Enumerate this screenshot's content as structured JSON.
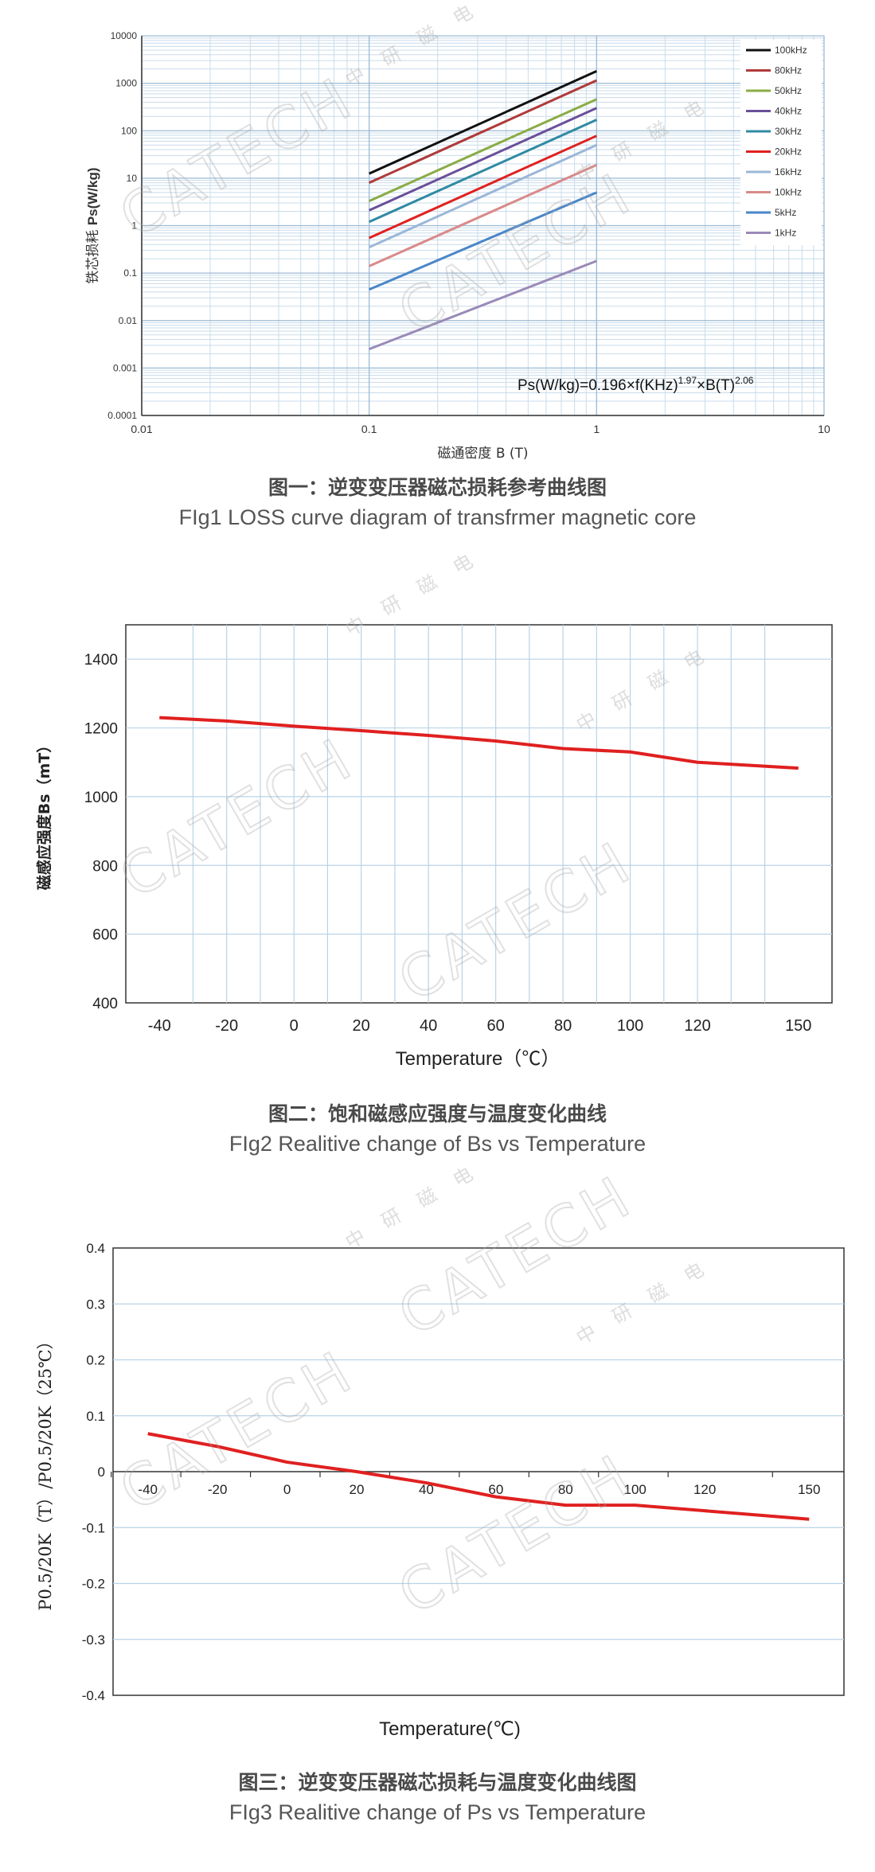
{
  "figures": [
    {
      "caption_cn": "图一：逆变变压器磁芯损耗参考曲线图",
      "caption_en": "FIg1 LOSS curve diagram of transfrmer magnetic core",
      "formula": "Ps(W/kg)=0.196×f(KHz)",
      "formula_exp1": "1.97",
      "formula_mid": "×B(T)",
      "formula_exp2": "2.06"
    },
    {
      "caption_cn": "图二：饱和磁感应强度与温度变化曲线",
      "caption_en": "FIg2 Realitive change of Bs vs Temperature"
    },
    {
      "caption_cn": "图三：逆变变压器磁芯损耗与温度变化曲线图",
      "caption_en": "FIg3 Realitive change of Ps vs Temperature"
    }
  ],
  "watermark": {
    "brand": "CATECH",
    "chars": [
      "中",
      "研",
      "磁",
      "电"
    ]
  },
  "chart_data": [
    {
      "type": "line",
      "scale": "log-log",
      "xlabel": "磁通密度 B (T)",
      "ylabel_cn": "铁芯损耗",
      "ylabel_en": "Ps(W/kg)",
      "xlim": [
        0.01,
        10
      ],
      "ylim": [
        0.0001,
        10000
      ],
      "xticks": [
        "0.01",
        "0.1",
        "1",
        "10"
      ],
      "yticks": [
        "0.0001",
        "0.001",
        "0.01",
        "0.1",
        "1",
        "10",
        "100",
        "1000",
        "10000"
      ],
      "grid": true,
      "legend": "top-right",
      "x": [
        0.1,
        1
      ],
      "series": [
        {
          "name": "100kHz",
          "values": [
            12.5,
            1800
          ],
          "color": "#111111"
        },
        {
          "name": "80kHz",
          "values": [
            8,
            1150
          ],
          "color": "#b03a3a"
        },
        {
          "name": "50kHz",
          "values": [
            3.3,
            460
          ],
          "color": "#8aac46"
        },
        {
          "name": "40kHz",
          "values": [
            2.1,
            300
          ],
          "color": "#6a4f9a"
        },
        {
          "name": "30kHz",
          "values": [
            1.2,
            170
          ],
          "color": "#2f8aa3"
        },
        {
          "name": "20kHz",
          "values": [
            0.55,
            78
          ],
          "color": "#e02020"
        },
        {
          "name": "16kHz",
          "values": [
            0.35,
            50
          ],
          "color": "#9bb7d8"
        },
        {
          "name": "10kHz",
          "values": [
            0.14,
            19
          ],
          "color": "#d98a8a"
        },
        {
          "name": "5kHz",
          "values": [
            0.045,
            5
          ],
          "color": "#4a86c8"
        },
        {
          "name": "1kHz",
          "values": [
            0.0025,
            0.18
          ],
          "color": "#9a8ab8"
        }
      ]
    },
    {
      "type": "line",
      "xlabel": "Temperature（℃）",
      "ylabel": "磁感应强度Bs（mT）",
      "xlim": [
        -50,
        160
      ],
      "ylim": [
        400,
        1500
      ],
      "xticks": [
        -40,
        -20,
        0,
        20,
        40,
        60,
        80,
        100,
        120,
        150
      ],
      "yticks": [
        400,
        600,
        800,
        1000,
        1200,
        1400
      ],
      "grid": true,
      "x": [
        -40,
        -20,
        0,
        20,
        40,
        60,
        80,
        100,
        120,
        150
      ],
      "series": [
        {
          "values": [
            1230,
            1220,
            1205,
            1192,
            1178,
            1162,
            1140,
            1130,
            1100,
            1083
          ],
          "color": "#e02020"
        }
      ]
    },
    {
      "type": "line",
      "xlabel": "Temperature(℃)",
      "ylabel": "P0.5/20K（T）/P0.5/20K（25℃）",
      "xlim": [
        -50,
        160
      ],
      "ylim": [
        -0.4,
        0.4
      ],
      "xticks": [
        -40,
        -20,
        0,
        20,
        40,
        60,
        80,
        100,
        120,
        150
      ],
      "yticks": [
        -0.4,
        -0.3,
        -0.2,
        -0.1,
        0,
        0.1,
        0.2,
        0.3,
        0.4
      ],
      "grid": true,
      "x": [
        -40,
        -20,
        0,
        20,
        40,
        60,
        80,
        100,
        120,
        150
      ],
      "series": [
        {
          "values": [
            0.068,
            0.045,
            0.017,
            0,
            -0.02,
            -0.045,
            -0.06,
            -0.06,
            -0.07,
            -0.085
          ],
          "color": "#e02020"
        }
      ]
    }
  ]
}
